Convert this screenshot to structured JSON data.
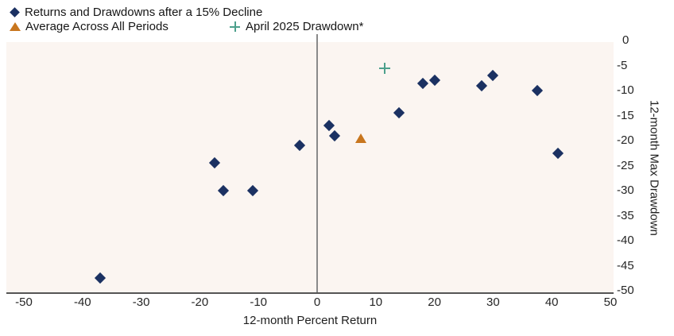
{
  "legend": {
    "items": [
      {
        "label": "Returns and Drawdowns after a 15% Decline",
        "marker": "diamond-icon"
      },
      {
        "label": "Average Across All Periods",
        "marker": "triangle-icon"
      },
      {
        "label": "April 2025 Drawdown*",
        "marker": "plus-icon"
      }
    ]
  },
  "colors": {
    "navy": "#1b3162",
    "orange": "#c8761e",
    "teal": "#4da08c",
    "plot_background": "#fbf5f1",
    "zero_line": "#8a8a8a",
    "axis_line": "#555555",
    "text": "#1f1f1f"
  },
  "chart_data": {
    "type": "scatter",
    "title": "Returns and Drawdowns after a 15% Decline",
    "xlabel": "12-month Percent Return",
    "ylabel": "12-month Max Drawdown",
    "xlim": [
      -50,
      50
    ],
    "ylim": [
      -50,
      0
    ],
    "grid": false,
    "legend_position": "top-left",
    "x_ticks": [
      {
        "v": -50,
        "label": "-50"
      },
      {
        "v": -40,
        "label": "-40"
      },
      {
        "v": -30,
        "label": "-30"
      },
      {
        "v": -20,
        "label": "-20"
      },
      {
        "v": -10,
        "label": "-10"
      },
      {
        "v": 0,
        "label": "0"
      },
      {
        "v": 10,
        "label": "10"
      },
      {
        "v": 20,
        "label": "20"
      },
      {
        "v": 30,
        "label": "30"
      },
      {
        "v": 40,
        "label": "40"
      },
      {
        "v": 50,
        "label": "50"
      }
    ],
    "y_ticks": [
      {
        "v": 0,
        "label": "0"
      },
      {
        "v": -5,
        "label": "-5"
      },
      {
        "v": -10,
        "label": "-10"
      },
      {
        "v": -15,
        "label": "-15"
      },
      {
        "v": -20,
        "label": "-20"
      },
      {
        "v": -25,
        "label": "-25"
      },
      {
        "v": -30,
        "label": "-30"
      },
      {
        "v": -35,
        "label": "-35"
      },
      {
        "v": -40,
        "label": "-40"
      },
      {
        "v": -45,
        "label": "-45"
      },
      {
        "v": -50,
        "label": "-50"
      }
    ],
    "series": [
      {
        "name": "Returns and Drawdowns after a 15% Decline",
        "marker": "diamond",
        "color": "#1b3162",
        "points": [
          [
            -37,
            -47.5
          ],
          [
            -17.5,
            -24.5
          ],
          [
            -16,
            -30
          ],
          [
            -11,
            -30
          ],
          [
            -3,
            -21
          ],
          [
            2,
            -17
          ],
          [
            3,
            -19
          ],
          [
            14,
            -14.5
          ],
          [
            18,
            -8.5
          ],
          [
            20,
            -8
          ],
          [
            28,
            -9
          ],
          [
            30,
            -7
          ],
          [
            37.5,
            -10
          ],
          [
            41,
            -22.5
          ]
        ]
      },
      {
        "name": "Average Across All Periods",
        "marker": "triangle",
        "color": "#c8761e",
        "points": [
          [
            7.5,
            -19.5
          ]
        ]
      },
      {
        "name": "April 2025 Drawdown*",
        "marker": "plus",
        "color": "#4da08c",
        "points": [
          [
            11.5,
            -5.5
          ]
        ]
      }
    ]
  }
}
